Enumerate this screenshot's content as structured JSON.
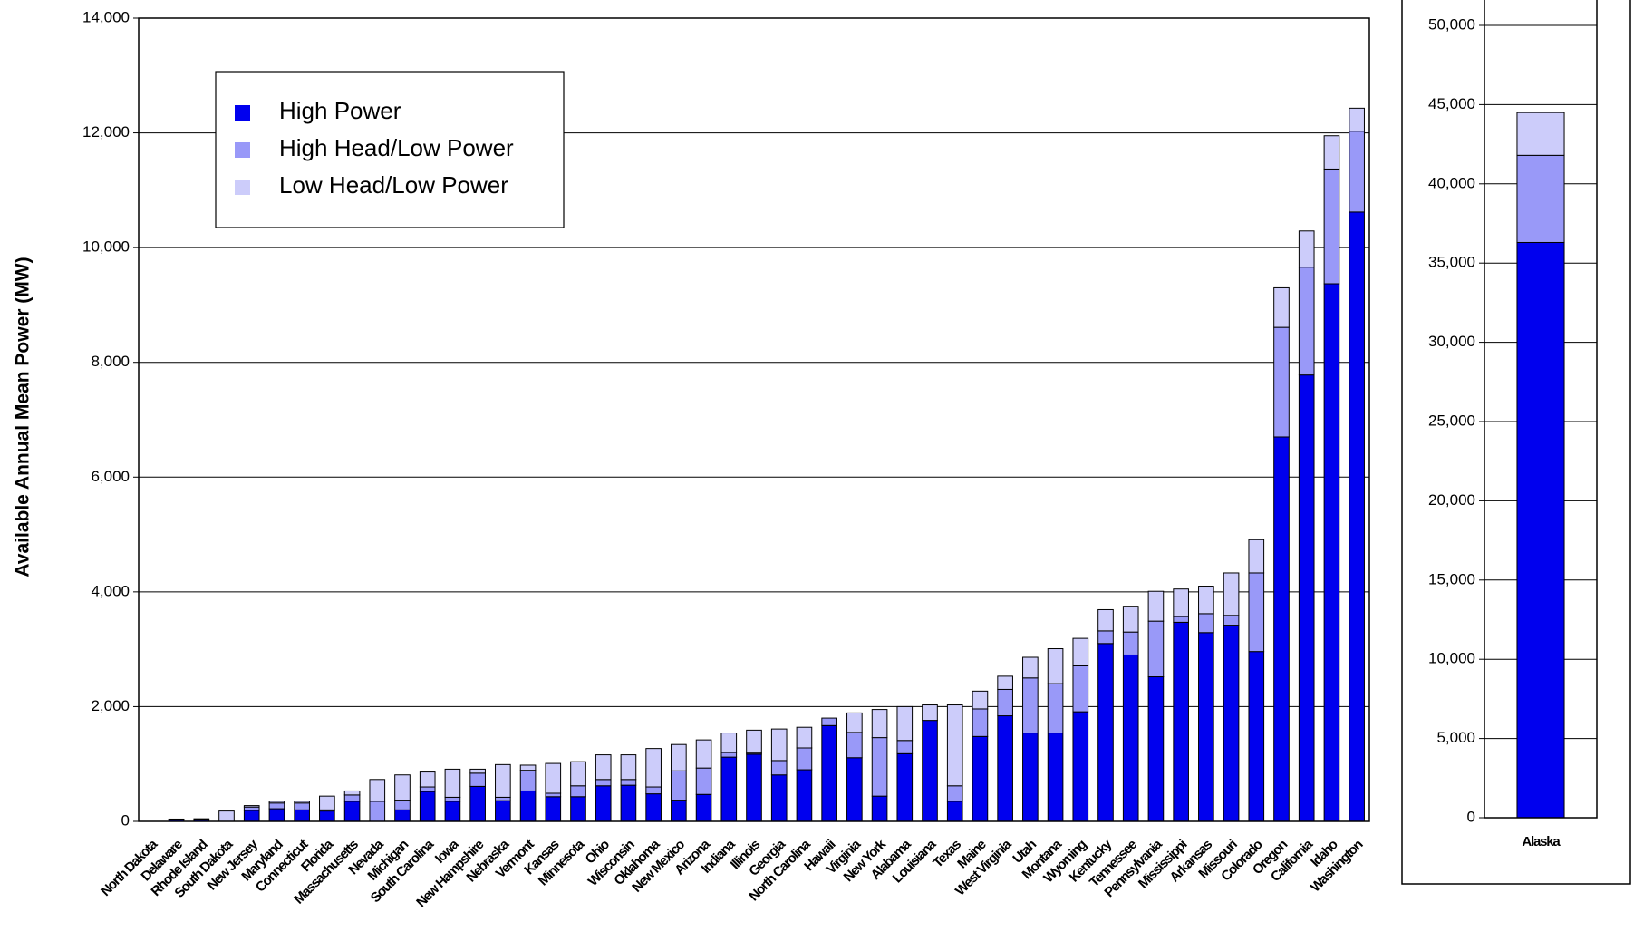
{
  "chart_data": [
    {
      "type": "bar",
      "stacked": true,
      "y_label": "Available Annual Mean Power (MW)",
      "categories": [
        "North Dakota",
        "Delaware",
        "Rhode Island",
        "South Dakota",
        "New Jersey",
        "Maryland",
        "Connecticut",
        "Florida",
        "Massachusetts",
        "Nevada",
        "Michigan",
        "South Carolina",
        "Iowa",
        "New Hampshire",
        "Nebraska",
        "Vermont",
        "Kansas",
        "Minnesota",
        "Ohio",
        "Wisconsin",
        "Oklahoma",
        "New Mexico",
        "Arizona",
        "Indiana",
        "Illinois",
        "Georgia",
        "North Carolina",
        "Hawaii",
        "Virginia",
        "New York",
        "Alabama",
        "Louisiana",
        "Texas",
        "Maine",
        "West Virginia",
        "Utah",
        "Montana",
        "Wyoming",
        "Kentucky",
        "Tennessee",
        "Pennsylvania",
        "Mississippi",
        "Arkansas",
        "Missouri",
        "Colorado",
        "Oregon",
        "California",
        "Idaho",
        "Washington"
      ],
      "series": [
        {
          "name": "High Power",
          "color": "#0000ee",
          "values": [
            0,
            30,
            30,
            0,
            190,
            220,
            200,
            180,
            350,
            0,
            200,
            520,
            350,
            610,
            360,
            530,
            430,
            430,
            620,
            630,
            480,
            370,
            470,
            1120,
            1170,
            810,
            900,
            1670,
            1110,
            440,
            1180,
            1760,
            350,
            1480,
            1840,
            1540,
            1540,
            1910,
            3100,
            2900,
            2520,
            3470,
            3290,
            3420,
            2960,
            6700,
            7780,
            9370,
            10620
          ]
        },
        {
          "name": "High Head/Low Power",
          "color": "#9999f8",
          "values": [
            0,
            5,
            5,
            0,
            60,
            100,
            120,
            20,
            110,
            350,
            170,
            80,
            70,
            230,
            60,
            360,
            60,
            190,
            110,
            100,
            120,
            510,
            460,
            80,
            20,
            250,
            380,
            130,
            440,
            1020,
            230,
            0,
            270,
            480,
            460,
            960,
            860,
            800,
            220,
            400,
            970,
            100,
            330,
            170,
            1370,
            1910,
            1880,
            2000,
            1410
          ]
        },
        {
          "name": "Low Head/Low Power",
          "color": "#ccccfa",
          "values": [
            0,
            5,
            10,
            180,
            25,
            30,
            30,
            240,
            70,
            380,
            440,
            260,
            490,
            70,
            570,
            90,
            520,
            420,
            430,
            430,
            670,
            460,
            490,
            340,
            400,
            550,
            360,
            0,
            340,
            490,
            590,
            270,
            1410,
            310,
            230,
            360,
            610,
            480,
            370,
            450,
            520,
            480,
            480,
            740,
            580,
            690,
            630,
            580,
            400
          ]
        }
      ],
      "ylim": [
        0,
        14000
      ],
      "yticks": [
        0,
        {
          "value": 2000,
          "label": "2,000"
        },
        {
          "value": 4000,
          "label": "4,000"
        },
        {
          "value": 6000,
          "label": "6,000"
        },
        {
          "value": 8000,
          "label": "8,000"
        },
        {
          "value": 10000,
          "label": "10,000"
        },
        {
          "value": 12000,
          "label": "12,000"
        },
        {
          "value": 14000,
          "label": "14,000"
        }
      ],
      "grid": true,
      "legend": "upper left"
    },
    {
      "type": "bar",
      "stacked": true,
      "categories": [
        "Alaska"
      ],
      "series": [
        {
          "color": "#0000ee",
          "values": [
            36300
          ]
        },
        {
          "color": "#9999f8",
          "values": [
            5500
          ]
        },
        {
          "color": "#ccccfa",
          "values": [
            2700
          ]
        }
      ],
      "ylim": [
        0,
        50000
      ],
      "yticks": [
        0,
        {
          "value": 5000,
          "label": "5,000"
        },
        {
          "value": 10000,
          "label": "10,000"
        },
        {
          "value": 15000,
          "label": "15,000"
        },
        {
          "value": 20000,
          "label": "20,000"
        },
        {
          "value": 25000,
          "label": "25,000"
        },
        {
          "value": 30000,
          "label": "30,000"
        },
        {
          "value": 35000,
          "label": "35,000"
        },
        {
          "value": 40000,
          "label": "40,000"
        },
        {
          "value": 45000,
          "label": "45,000"
        },
        {
          "value": 50000,
          "label": "50,000"
        }
      ],
      "grid": true
    }
  ]
}
